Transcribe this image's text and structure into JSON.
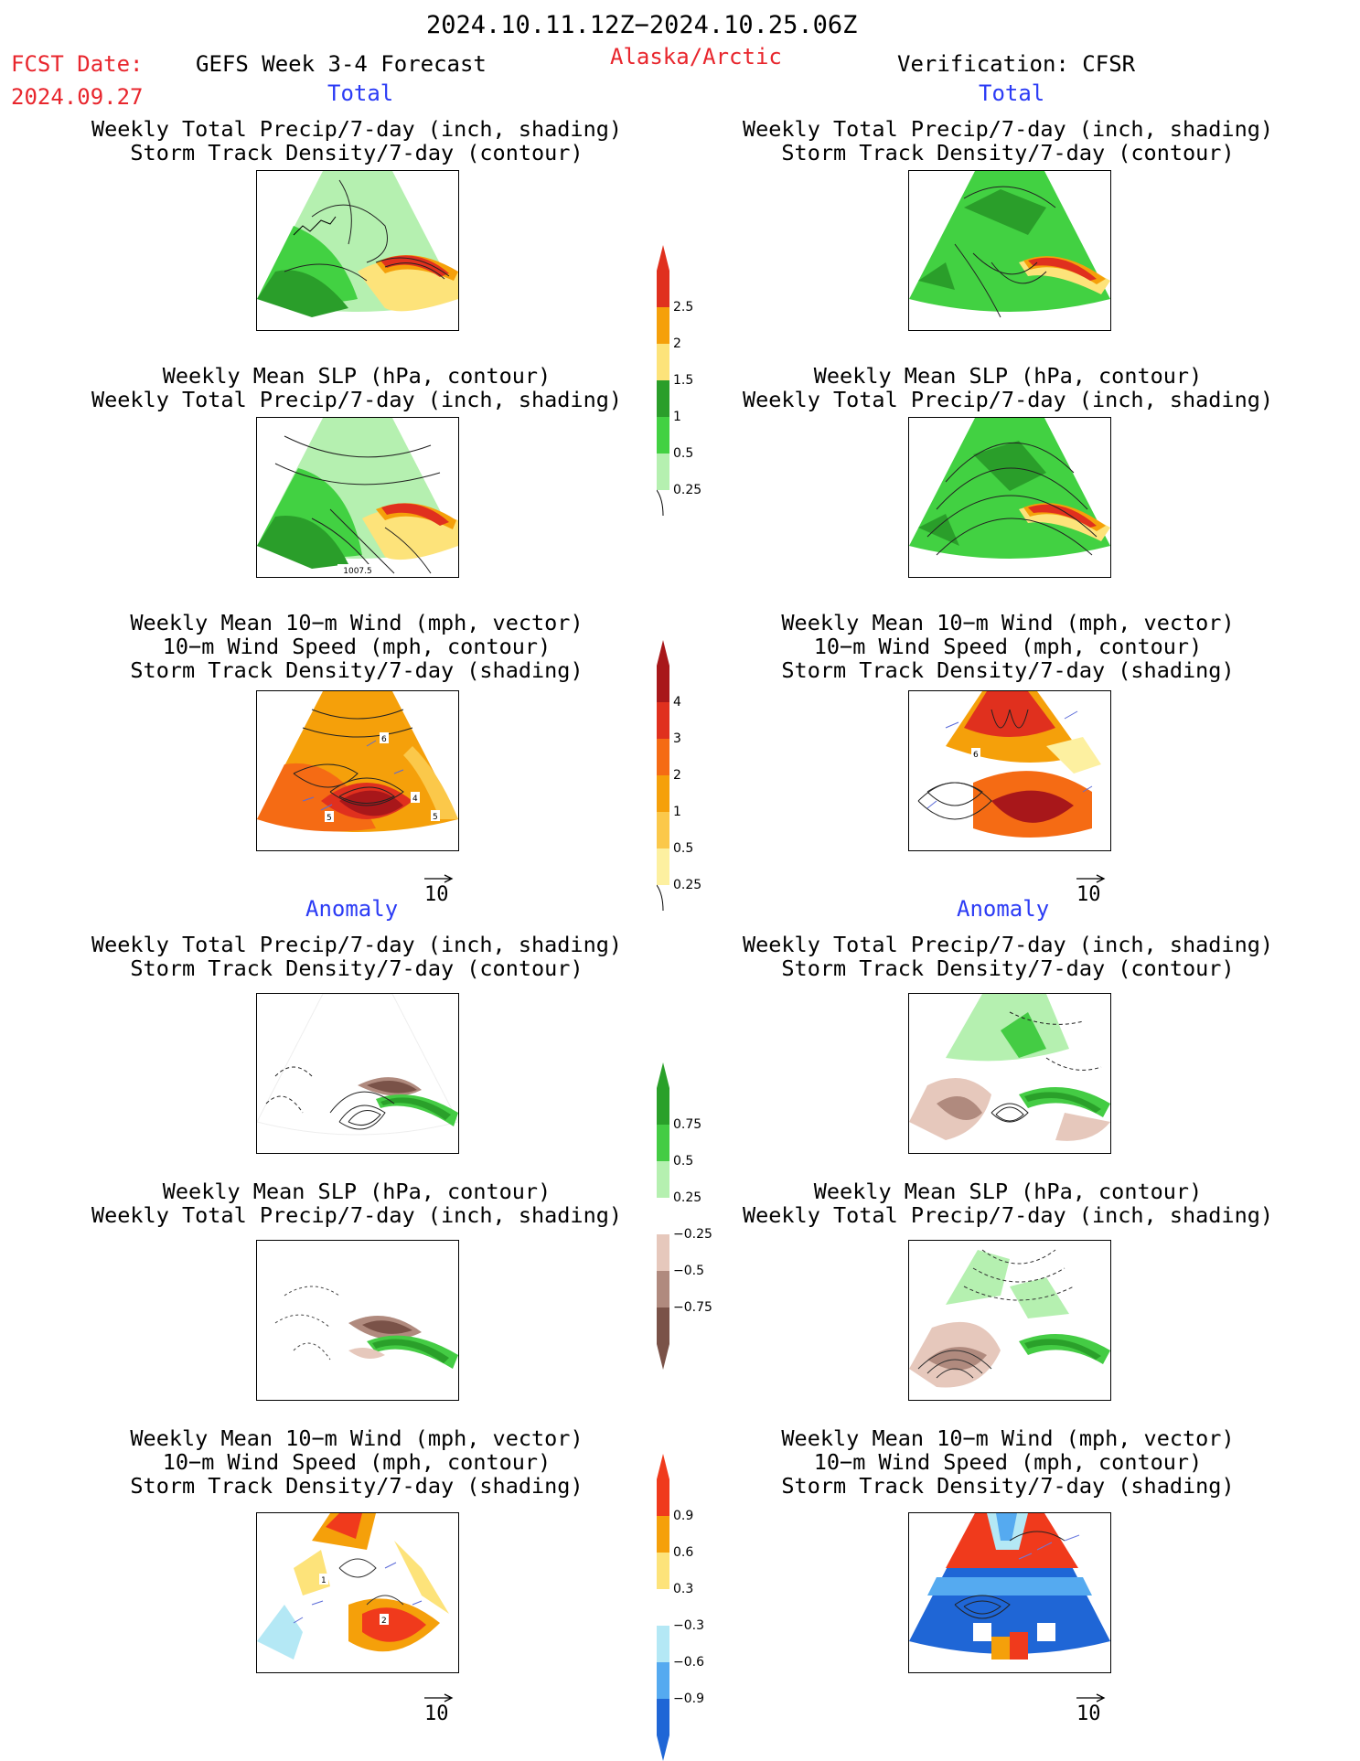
{
  "header": {
    "time_range": "2024.10.11.12Z−2024.10.25.06Z",
    "fcst_date_label": "FCST Date:",
    "fcst_date_value": "2024.09.27",
    "model_label": "GEFS Week 3-4 Forecast",
    "region": "Alaska/Arctic",
    "verification": "Verification: CFSR"
  },
  "sections": {
    "total": "Total",
    "anomaly": "Anomaly"
  },
  "panel_titles": {
    "precip_storm": [
      "Weekly Total Precip/7-day (inch, shading)",
      "Storm Track Density/7-day (contour)"
    ],
    "slp_precip": [
      "Weekly Mean SLP (hPa, contour)",
      "Weekly Total Precip/7-day (inch, shading)"
    ],
    "wind_storm": [
      "Weekly Mean 10−m Wind (mph, vector)",
      "10−m Wind Speed (mph, contour)",
      "Storm Track Density/7-day (shading)"
    ]
  },
  "panel_labels": {
    "slp_total_fcst": "1007.5",
    "wind_total_fcst": [
      "5",
      "4",
      "6",
      "5"
    ],
    "wind_total_ver": "6",
    "wind_anom_fcst": [
      "1",
      "2"
    ]
  },
  "vector_ref": "10",
  "colorbars": {
    "precip_total": {
      "labels": [
        "2.5",
        "2",
        "1.5",
        "1",
        "0.5",
        "0.25"
      ],
      "colors": [
        "#e0301e",
        "#f5a00a",
        "#fde37a",
        "#2a9e2a",
        "#42d142",
        "#b5f0b0"
      ]
    },
    "storm_total": {
      "labels": [
        "4",
        "3",
        "2",
        "1",
        "0.5",
        "0.25"
      ],
      "colors": [
        "#a8171a",
        "#e0301e",
        "#f56b14",
        "#f5a00a",
        "#fbc84a",
        "#fdf0a0"
      ]
    },
    "precip_anom": {
      "labels": [
        "0.75",
        "0.5",
        "0.25",
        "−0.25",
        "−0.5",
        "−0.75"
      ],
      "colors": [
        "#2aa02a",
        "#44cc44",
        "#b5f0b0",
        "#ffffff",
        "#e6c8bc",
        "#b08a7e",
        "#7a5248"
      ]
    },
    "storm_anom": {
      "labels": [
        "0.9",
        "0.6",
        "0.3",
        "−0.3",
        "−0.6",
        "−0.9"
      ],
      "colors": [
        "#f03a1c",
        "#f5a00a",
        "#fde37a",
        "#ffffff",
        "#b4e8f5",
        "#55aaf0",
        "#1f66d6"
      ]
    }
  }
}
